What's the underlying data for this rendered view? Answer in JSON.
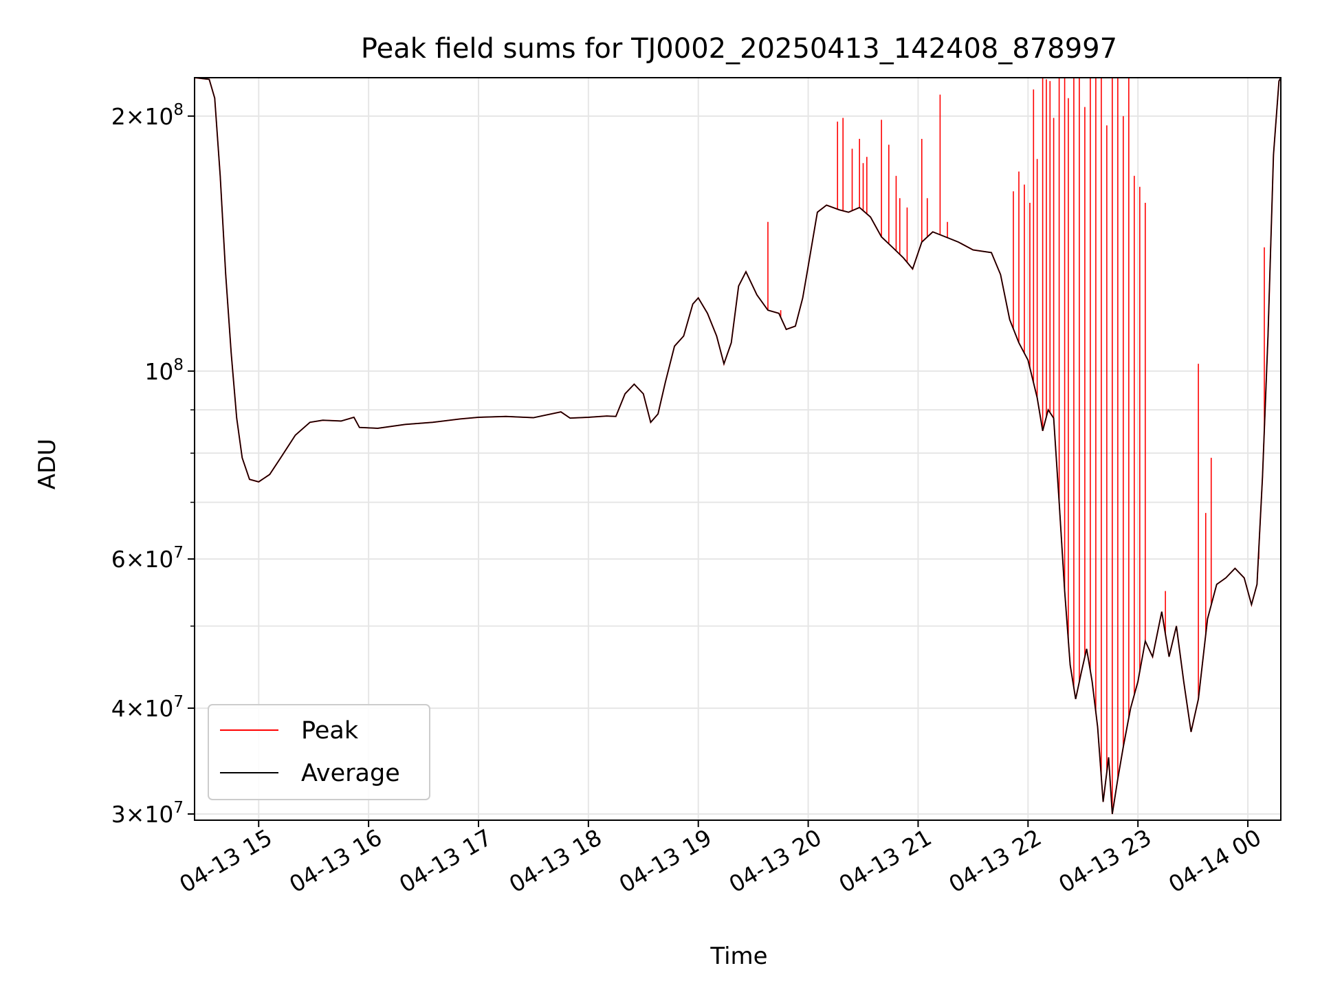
{
  "chart_data": {
    "type": "line",
    "title": "Peak field sums for TJ0002_20250413_142408_878997",
    "xlabel": "Time",
    "ylabel": "ADU",
    "x_scale": "time",
    "y_scale": "log",
    "xlim": [
      "2025-04-13 14:25",
      "2025-04-14 00:18"
    ],
    "ylim": [
      29500000,
      222000000
    ],
    "x_ticks": [
      {
        "value": "2025-04-13 15:00",
        "label": "04-13 15"
      },
      {
        "value": "2025-04-13 16:00",
        "label": "04-13 16"
      },
      {
        "value": "2025-04-13 17:00",
        "label": "04-13 17"
      },
      {
        "value": "2025-04-13 18:00",
        "label": "04-13 18"
      },
      {
        "value": "2025-04-13 19:00",
        "label": "04-13 19"
      },
      {
        "value": "2025-04-13 20:00",
        "label": "04-13 20"
      },
      {
        "value": "2025-04-13 21:00",
        "label": "04-13 21"
      },
      {
        "value": "2025-04-13 22:00",
        "label": "04-13 22"
      },
      {
        "value": "2025-04-13 23:00",
        "label": "04-13 23"
      },
      {
        "value": "2025-04-14 00:00",
        "label": "04-14 00"
      }
    ],
    "y_major_ticks": [
      {
        "value": 30000000,
        "base": "3",
        "exp": "7"
      },
      {
        "value": 40000000,
        "base": "4",
        "exp": "7"
      },
      {
        "value": 60000000,
        "base": "6",
        "exp": "7"
      },
      {
        "value": 100000000,
        "base": "",
        "exp": "8"
      },
      {
        "value": 200000000,
        "base": "2",
        "exp": "8"
      }
    ],
    "y_minor_grid": [
      50000000,
      70000000,
      80000000,
      90000000
    ],
    "grid": true,
    "legend": {
      "position": "lower-left"
    },
    "series": [
      {
        "name": "Average",
        "color": "#000000",
        "points": [
          [
            "2025-04-13 14:25",
            222000000
          ],
          [
            "2025-04-13 14:33",
            221000000
          ],
          [
            "2025-04-13 14:36",
            210000000
          ],
          [
            "2025-04-13 14:39",
            170000000
          ],
          [
            "2025-04-13 14:42",
            130000000
          ],
          [
            "2025-04-13 14:45",
            105000000
          ],
          [
            "2025-04-13 14:48",
            88000000
          ],
          [
            "2025-04-13 14:51",
            79000000
          ],
          [
            "2025-04-13 14:55",
            74500000
          ],
          [
            "2025-04-13 15:00",
            74000000
          ],
          [
            "2025-04-13 15:06",
            75500000
          ],
          [
            "2025-04-13 15:12",
            79000000
          ],
          [
            "2025-04-13 15:20",
            84000000
          ],
          [
            "2025-04-13 15:28",
            87000000
          ],
          [
            "2025-04-13 15:35",
            87500000
          ],
          [
            "2025-04-13 15:45",
            87300000
          ],
          [
            "2025-04-13 15:52",
            88200000
          ],
          [
            "2025-04-13 15:55",
            85800000
          ],
          [
            "2025-04-13 16:05",
            85600000
          ],
          [
            "2025-04-13 16:20",
            86500000
          ],
          [
            "2025-04-13 16:35",
            87000000
          ],
          [
            "2025-04-13 16:50",
            87800000
          ],
          [
            "2025-04-13 17:00",
            88200000
          ],
          [
            "2025-04-13 17:15",
            88400000
          ],
          [
            "2025-04-13 17:30",
            88100000
          ],
          [
            "2025-04-13 17:45",
            89500000
          ],
          [
            "2025-04-13 17:50",
            88000000
          ],
          [
            "2025-04-13 18:00",
            88200000
          ],
          [
            "2025-04-13 18:10",
            88500000
          ],
          [
            "2025-04-13 18:15",
            88400000
          ],
          [
            "2025-04-13 18:20",
            94000000
          ],
          [
            "2025-04-13 18:25",
            96500000
          ],
          [
            "2025-04-13 18:30",
            94000000
          ],
          [
            "2025-04-13 18:34",
            87000000
          ],
          [
            "2025-04-13 18:38",
            89000000
          ],
          [
            "2025-04-13 18:42",
            97000000
          ],
          [
            "2025-04-13 18:47",
            107000000
          ],
          [
            "2025-04-13 18:52",
            110000000
          ],
          [
            "2025-04-13 18:57",
            120000000
          ],
          [
            "2025-04-13 19:00",
            122000000
          ],
          [
            "2025-04-13 19:05",
            117000000
          ],
          [
            "2025-04-13 19:10",
            110000000
          ],
          [
            "2025-04-13 19:14",
            102000000
          ],
          [
            "2025-04-13 19:18",
            108000000
          ],
          [
            "2025-04-13 19:22",
            126000000
          ],
          [
            "2025-04-13 19:26",
            131000000
          ],
          [
            "2025-04-13 19:32",
            123000000
          ],
          [
            "2025-04-13 19:38",
            118000000
          ],
          [
            "2025-04-13 19:44",
            117000000
          ],
          [
            "2025-04-13 19:48",
            112000000
          ],
          [
            "2025-04-13 19:53",
            113000000
          ],
          [
            "2025-04-13 19:57",
            122000000
          ],
          [
            "2025-04-13 20:00",
            133000000
          ],
          [
            "2025-04-13 20:05",
            154000000
          ],
          [
            "2025-04-13 20:10",
            157000000
          ],
          [
            "2025-04-13 20:17",
            155000000
          ],
          [
            "2025-04-13 20:22",
            154000000
          ],
          [
            "2025-04-13 20:28",
            156000000
          ],
          [
            "2025-04-13 20:34",
            152000000
          ],
          [
            "2025-04-13 20:40",
            144000000
          ],
          [
            "2025-04-13 20:46",
            140000000
          ],
          [
            "2025-04-13 20:52",
            136000000
          ],
          [
            "2025-04-13 20:57",
            132000000
          ],
          [
            "2025-04-13 21:02",
            142000000
          ],
          [
            "2025-04-13 21:08",
            146000000
          ],
          [
            "2025-04-13 21:15",
            144000000
          ],
          [
            "2025-04-13 21:22",
            142000000
          ],
          [
            "2025-04-13 21:30",
            139000000
          ],
          [
            "2025-04-13 21:40",
            138000000
          ],
          [
            "2025-04-13 21:45",
            130000000
          ],
          [
            "2025-04-13 21:50",
            115000000
          ],
          [
            "2025-04-13 21:55",
            108000000
          ],
          [
            "2025-04-13 22:00",
            103000000
          ],
          [
            "2025-04-13 22:05",
            93000000
          ],
          [
            "2025-04-13 22:08",
            85000000
          ],
          [
            "2025-04-13 22:11",
            90000000
          ],
          [
            "2025-04-13 22:14",
            88000000
          ],
          [
            "2025-04-13 22:17",
            70000000
          ],
          [
            "2025-04-13 22:20",
            55000000
          ],
          [
            "2025-04-13 22:23",
            45000000
          ],
          [
            "2025-04-13 22:26",
            41000000
          ],
          [
            "2025-04-13 22:29",
            44000000
          ],
          [
            "2025-04-13 22:32",
            47000000
          ],
          [
            "2025-04-13 22:35",
            43000000
          ],
          [
            "2025-04-13 22:38",
            38000000
          ],
          [
            "2025-04-13 22:41",
            31000000
          ],
          [
            "2025-04-13 22:44",
            35000000
          ],
          [
            "2025-04-13 22:46",
            30000000
          ],
          [
            "2025-04-13 22:49",
            33000000
          ],
          [
            "2025-04-13 22:52",
            36000000
          ],
          [
            "2025-04-13 22:56",
            40000000
          ],
          [
            "2025-04-13 23:00",
            43000000
          ],
          [
            "2025-04-13 23:04",
            48000000
          ],
          [
            "2025-04-13 23:08",
            46000000
          ],
          [
            "2025-04-13 23:13",
            52000000
          ],
          [
            "2025-04-13 23:17",
            46000000
          ],
          [
            "2025-04-13 23:21",
            50000000
          ],
          [
            "2025-04-13 23:25",
            43000000
          ],
          [
            "2025-04-13 23:29",
            37500000
          ],
          [
            "2025-04-13 23:33",
            41000000
          ],
          [
            "2025-04-13 23:38",
            51000000
          ],
          [
            "2025-04-13 23:43",
            56000000
          ],
          [
            "2025-04-13 23:48",
            57000000
          ],
          [
            "2025-04-13 23:53",
            58500000
          ],
          [
            "2025-04-13 23:58",
            57000000
          ],
          [
            "2025-04-14 00:02",
            53000000
          ],
          [
            "2025-04-14 00:05",
            56000000
          ],
          [
            "2025-04-14 00:08",
            75000000
          ],
          [
            "2025-04-14 00:11",
            110000000
          ],
          [
            "2025-04-14 00:14",
            180000000
          ],
          [
            "2025-04-14 00:17",
            220000000
          ],
          [
            "2025-04-14 00:18",
            222000000
          ]
        ]
      },
      {
        "name": "Peak",
        "color": "#ff0000",
        "spikes": [
          [
            "2025-04-13 19:38",
            150000000
          ],
          [
            "2025-04-13 19:45",
            118000000
          ],
          [
            "2025-04-13 20:16",
            197000000
          ],
          [
            "2025-04-13 20:19",
            199000000
          ],
          [
            "2025-04-13 20:24",
            183000000
          ],
          [
            "2025-04-13 20:28",
            188000000
          ],
          [
            "2025-04-13 20:30",
            176000000
          ],
          [
            "2025-04-13 20:32",
            179000000
          ],
          [
            "2025-04-13 20:40",
            198000000
          ],
          [
            "2025-04-13 20:44",
            185000000
          ],
          [
            "2025-04-13 20:48",
            170000000
          ],
          [
            "2025-04-13 20:50",
            160000000
          ],
          [
            "2025-04-13 20:54",
            156000000
          ],
          [
            "2025-04-13 21:02",
            188000000
          ],
          [
            "2025-04-13 21:05",
            160000000
          ],
          [
            "2025-04-13 21:12",
            212000000
          ],
          [
            "2025-04-13 21:16",
            150000000
          ],
          [
            "2025-04-13 21:52",
            163000000
          ],
          [
            "2025-04-13 21:55",
            172000000
          ],
          [
            "2025-04-13 21:58",
            166000000
          ],
          [
            "2025-04-13 22:01",
            158000000
          ],
          [
            "2025-04-13 22:03",
            215000000
          ],
          [
            "2025-04-13 22:05",
            178000000
          ],
          [
            "2025-04-13 22:08",
            222000000
          ],
          [
            "2025-04-13 22:10",
            221000000
          ],
          [
            "2025-04-13 22:12",
            220000000
          ],
          [
            "2025-04-13 22:14",
            199000000
          ],
          [
            "2025-04-13 22:17",
            222000000
          ],
          [
            "2025-04-13 22:20",
            222000000
          ],
          [
            "2025-04-13 22:22",
            210000000
          ],
          [
            "2025-04-13 22:25",
            222000000
          ],
          [
            "2025-04-13 22:28",
            222000000
          ],
          [
            "2025-04-13 22:31",
            205000000
          ],
          [
            "2025-04-13 22:34",
            222000000
          ],
          [
            "2025-04-13 22:37",
            222000000
          ],
          [
            "2025-04-13 22:40",
            222000000
          ],
          [
            "2025-04-13 22:43",
            195000000
          ],
          [
            "2025-04-13 22:46",
            222000000
          ],
          [
            "2025-04-13 22:49",
            222000000
          ],
          [
            "2025-04-13 22:52",
            200000000
          ],
          [
            "2025-04-13 22:55",
            222000000
          ],
          [
            "2025-04-13 22:58",
            170000000
          ],
          [
            "2025-04-13 23:01",
            165000000
          ],
          [
            "2025-04-13 23:04",
            158000000
          ],
          [
            "2025-04-13 23:15",
            55000000
          ],
          [
            "2025-04-13 23:33",
            102000000
          ],
          [
            "2025-04-13 23:37",
            68000000
          ],
          [
            "2025-04-13 23:40",
            79000000
          ],
          [
            "2025-04-14 00:06",
            60000000
          ],
          [
            "2025-04-14 00:09",
            140000000
          ]
        ]
      }
    ]
  }
}
